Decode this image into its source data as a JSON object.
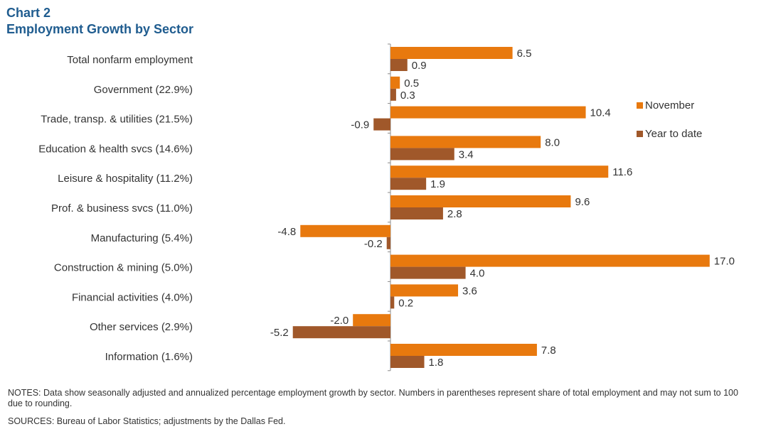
{
  "header": {
    "chart_number": "Chart 2",
    "title": "Employment  Growth by Sector"
  },
  "footer": {
    "notes": "NOTES:  Data show seasonally adjusted and annualized percentage employment  growth by sector. Numbers in parentheses represent share of total employment and may not sum to 100 due to rounding.",
    "sources": "SOURCES:  Bureau of Labor Statistics;  adjustments by the Dallas Fed."
  },
  "chart_data": {
    "type": "bar",
    "orientation": "horizontal",
    "categories": [
      "Total nonfarm employment",
      "Government (22.9%)",
      "Trade, transp. & utilities (21.5%)",
      "Education & health svcs (14.6%)",
      "Leisure & hospitality (11.2%)",
      "Prof. & business svcs (11.0%)",
      "Manufacturing (5.4%)",
      "Construction & mining (5.0%)",
      "Financial activities (4.0%)",
      "Other services (2.9%)",
      "Information (1.6%)"
    ],
    "series": [
      {
        "name": "November",
        "color": "#e8790e",
        "values": [
          6.5,
          0.5,
          10.4,
          8.0,
          11.6,
          9.6,
          -4.8,
          17.0,
          3.6,
          -2.0,
          7.8
        ],
        "labels": [
          "6.5",
          "0.5",
          "10.4",
          "8.0",
          "11.6",
          "9.6",
          "-4.8",
          "17.0",
          "3.6",
          "-2.0",
          "7.8"
        ]
      },
      {
        "name": "Year to date",
        "color": "#a0582a",
        "values": [
          0.9,
          0.3,
          -0.9,
          3.4,
          1.9,
          2.8,
          -0.2,
          4.0,
          0.2,
          -5.2,
          1.8
        ],
        "labels": [
          "0.9",
          "0.3",
          "-0.9",
          "3.4",
          "1.9",
          "2.8",
          "-0.2",
          "4.0",
          "0.2",
          "-5.2",
          "1.8"
        ]
      }
    ],
    "legend_position": "right",
    "grid": false
  }
}
